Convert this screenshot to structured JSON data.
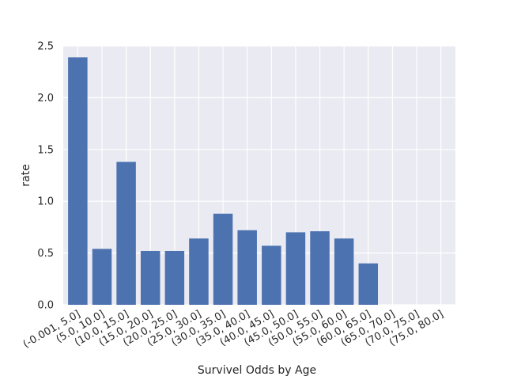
{
  "chart_data": {
    "type": "bar",
    "title": "",
    "xlabel": "Survivel Odds by Age",
    "ylabel": "rate",
    "categories": [
      "(-0.001, 5.0]",
      "(5.0, 10.0]",
      "(10.0, 15.0]",
      "(15.0, 20.0]",
      "(20.0, 25.0]",
      "(25.0, 30.0]",
      "(30.0, 35.0]",
      "(35.0, 40.0]",
      "(40.0, 45.0]",
      "(45.0, 50.0]",
      "(50.0, 55.0]",
      "(55.0, 60.0]",
      "(60.0, 65.0]",
      "(65.0, 70.0]",
      "(70.0, 75.0]",
      "(75.0, 80.0]"
    ],
    "values": [
      2.39,
      0.54,
      1.38,
      0.52,
      0.52,
      0.64,
      0.88,
      0.72,
      0.57,
      0.7,
      0.71,
      0.64,
      0.4,
      0.0,
      0.0,
      0.0
    ],
    "ylim": [
      0,
      2.5
    ],
    "yticks": [
      "0.0",
      "0.5",
      "1.0",
      "1.5",
      "2.0",
      "2.5"
    ],
    "grid": true,
    "bar_color": "#4c72b0",
    "background_color": "#eaeaf2",
    "grid_color": "#ffffff"
  }
}
